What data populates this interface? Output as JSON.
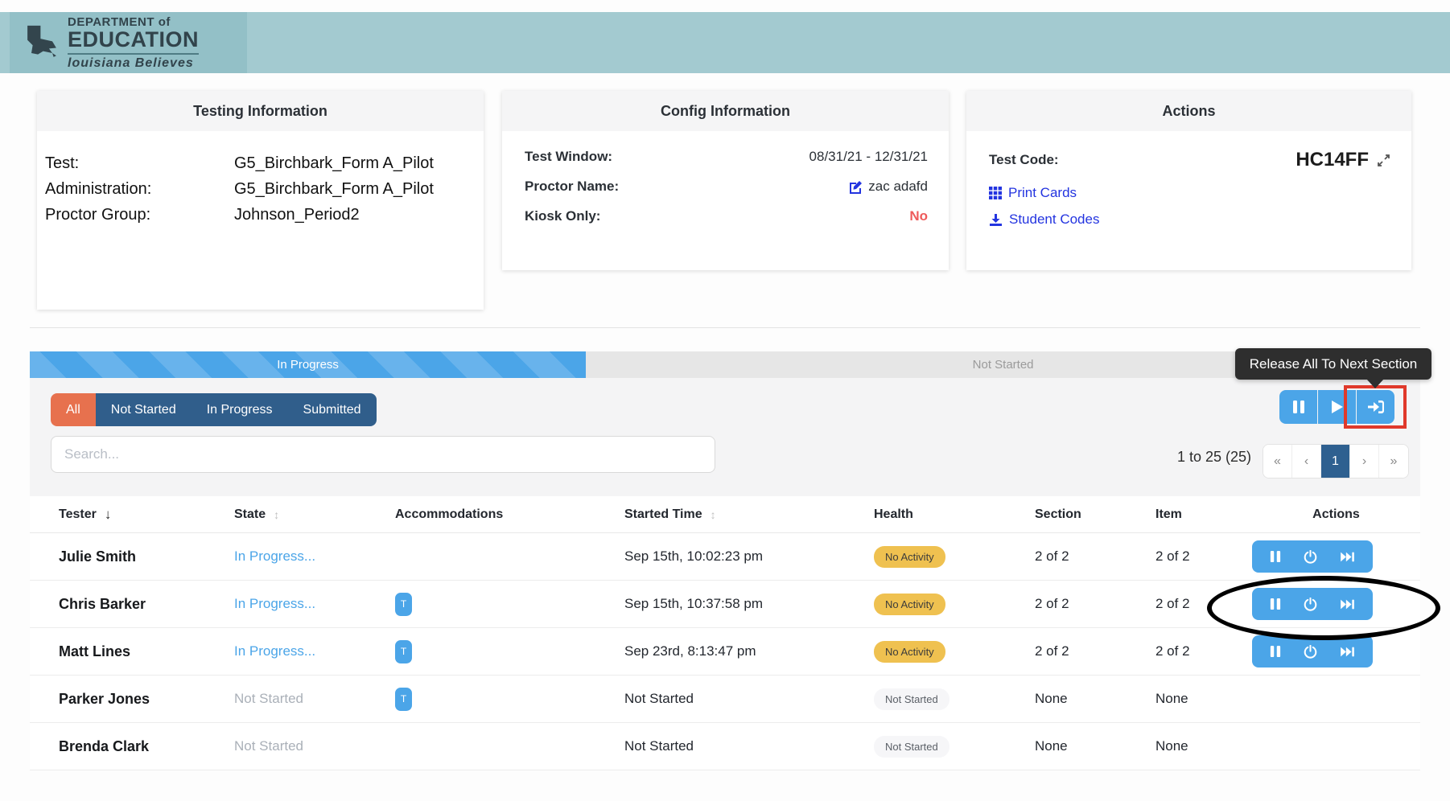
{
  "header": {
    "logo": {
      "line1": "DEPARTMENT of",
      "line2": "EDUCATION",
      "tagline": "louisiana Believes"
    }
  },
  "cards": {
    "testing": {
      "title": "Testing Information",
      "rows": [
        {
          "label": "Test:",
          "value": "G5_Birchbark_Form A_Pilot"
        },
        {
          "label": "Administration:",
          "value": "G5_Birchbark_Form A_Pilot"
        },
        {
          "label": "Proctor Group:",
          "value": "Johnson_Period2"
        }
      ]
    },
    "config": {
      "title": "Config Information",
      "rows": [
        {
          "label": "Test Window:",
          "value": "08/31/21 - 12/31/21"
        },
        {
          "label": "Proctor Name:",
          "value": "zac adafd"
        },
        {
          "label": "Kiosk Only:",
          "value": "No"
        }
      ]
    },
    "actions": {
      "title": "Actions",
      "test_code_label": "Test Code:",
      "test_code": "HC14FF",
      "links": [
        {
          "label": "Print Cards",
          "icon": "grid-icon"
        },
        {
          "label": "Student Codes",
          "icon": "download-icon"
        }
      ]
    }
  },
  "progress": {
    "in_progress_label": "In Progress",
    "not_started_label": "Not Started",
    "in_progress_pct": 40
  },
  "tooltip": {
    "text": "Release All To Next Section"
  },
  "filters": {
    "items": [
      {
        "label": "All",
        "active": true
      },
      {
        "label": "Not Started",
        "active": false
      },
      {
        "label": "In Progress",
        "active": false
      },
      {
        "label": "Submitted",
        "active": false
      }
    ]
  },
  "search": {
    "placeholder": "Search..."
  },
  "pagination": {
    "summary": "1 to 25 (25)",
    "first": "«",
    "prev": "‹",
    "page": "1",
    "next": "›",
    "last": "»"
  },
  "table": {
    "columns": {
      "tester": "Tester",
      "state": "State",
      "accommodations": "Accommodations",
      "started": "Started Time",
      "health": "Health",
      "section": "Section",
      "item": "Item",
      "actions": "Actions"
    },
    "sort_icons": {
      "desc": "↓",
      "both": "↕"
    },
    "rows": [
      {
        "tester": "Julie Smith",
        "state": "In Progress...",
        "state_type": "progress",
        "accommodation": "",
        "started": "Sep 15th, 10:02:23 pm",
        "health": "No Activity",
        "health_type": "warning",
        "section": "2 of 2",
        "item": "2 of 2",
        "has_actions": true
      },
      {
        "tester": "Chris Barker",
        "state": "In Progress...",
        "state_type": "progress",
        "accommodation": "T",
        "started": "Sep 15th, 10:37:58 pm",
        "health": "No Activity",
        "health_type": "warning",
        "section": "2 of 2",
        "item": "2 of 2",
        "has_actions": true
      },
      {
        "tester": "Matt Lines",
        "state": "In Progress...",
        "state_type": "progress",
        "accommodation": "T",
        "started": "Sep 23rd, 8:13:47 pm",
        "health": "No Activity",
        "health_type": "warning",
        "section": "2 of 2",
        "item": "2 of 2",
        "has_actions": true
      },
      {
        "tester": "Parker Jones",
        "state": "Not Started",
        "state_type": "muted",
        "accommodation": "T",
        "started": "Not Started",
        "health": "Not Started",
        "health_type": "muted",
        "section": "None",
        "item": "None",
        "has_actions": false
      },
      {
        "tester": "Brenda Clark",
        "state": "Not Started",
        "state_type": "muted",
        "accommodation": "",
        "started": "Not Started",
        "health": "Not Started",
        "health_type": "muted",
        "section": "None",
        "item": "None",
        "has_actions": false
      }
    ]
  },
  "colors": {
    "header_teal": "#a3cad0",
    "accent_blue": "#4ba5e8",
    "link_blue": "#2334e0",
    "filter_orange": "#e7714e",
    "filter_navy": "#305e8b",
    "warning_badge": "#efc150",
    "danger_red": "#ee5a5a",
    "annotation_red": "#e0392b",
    "active_page": "#2e6090"
  }
}
